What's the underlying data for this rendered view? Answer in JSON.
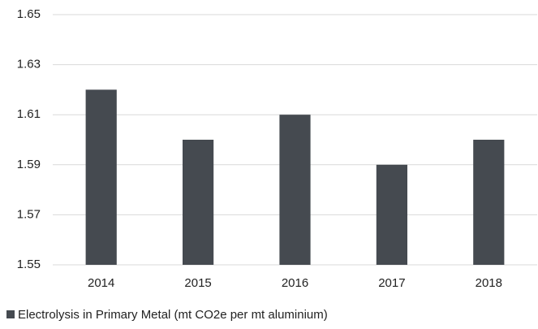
{
  "chart_data": {
    "type": "bar",
    "categories": [
      "2014",
      "2015",
      "2016",
      "2017",
      "2018"
    ],
    "series": [
      {
        "name": "Electrolysis in Primary Metal (mt CO2e per mt aluminium)",
        "color": "#454a50",
        "values": [
          1.62,
          1.6,
          1.61,
          1.59,
          1.6
        ]
      }
    ],
    "ylim": [
      1.55,
      1.65
    ],
    "yticks": [
      1.55,
      1.57,
      1.59,
      1.61,
      1.63,
      1.65
    ],
    "grid": true,
    "legend": "bottom"
  }
}
